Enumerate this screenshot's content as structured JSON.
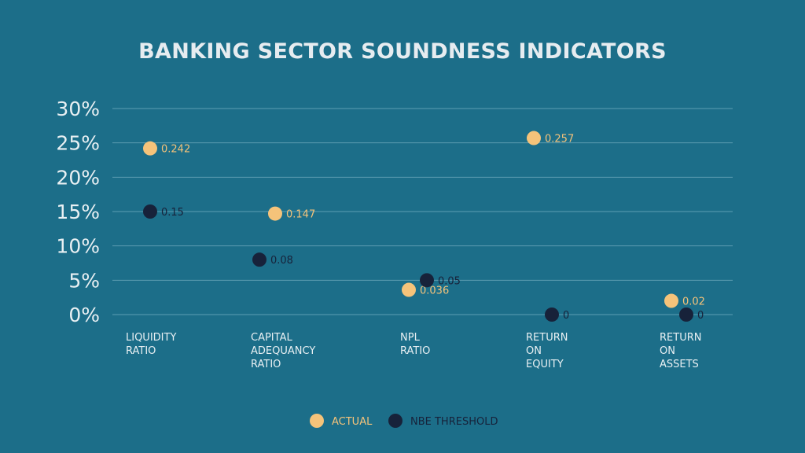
{
  "title": "BANKING SECTOR SOUNDNESS INDICATORS",
  "colors": {
    "background": "#1c6e89",
    "actual": "#f5c37a",
    "threshold": "#17223a",
    "text": "#e9f0f3"
  },
  "chart_data": {
    "type": "scatter",
    "title": "BANKING SECTOR SOUNDNESS INDICATORS",
    "xlabel": "",
    "ylabel": "",
    "ylim": [
      0,
      0.3
    ],
    "y_ticks": [
      "0%",
      "5%",
      "10%",
      "15%",
      "20%",
      "25%",
      "30%"
    ],
    "y_tick_values": [
      0,
      0.05,
      0.1,
      0.15,
      0.2,
      0.25,
      0.3
    ],
    "grid": true,
    "legend_position": "bottom-center",
    "categories": [
      [
        "LIQUIDITY",
        "RATIO"
      ],
      [
        "CAPITAL",
        "ADEQUANCY",
        "RATIO"
      ],
      [
        "NPL",
        "RATIO"
      ],
      [
        "RETURN",
        "ON",
        "EQUITY"
      ],
      [
        "RETURN",
        "ON",
        "ASSETS"
      ]
    ],
    "series": [
      {
        "name": "ACTUAL",
        "color": "#f5c37a",
        "values": [
          0.242,
          0.147,
          0.036,
          0.257,
          0.02
        ],
        "labels": [
          "0.242",
          "0.147",
          "0.036",
          "0.257",
          "0.02"
        ]
      },
      {
        "name": "NBE THRESHOLD",
        "color": "#17223a",
        "values": [
          0.15,
          0.08,
          0.05,
          0,
          0
        ],
        "labels": [
          "0.15",
          "0.08",
          "0.05",
          "0",
          "0"
        ]
      }
    ]
  }
}
